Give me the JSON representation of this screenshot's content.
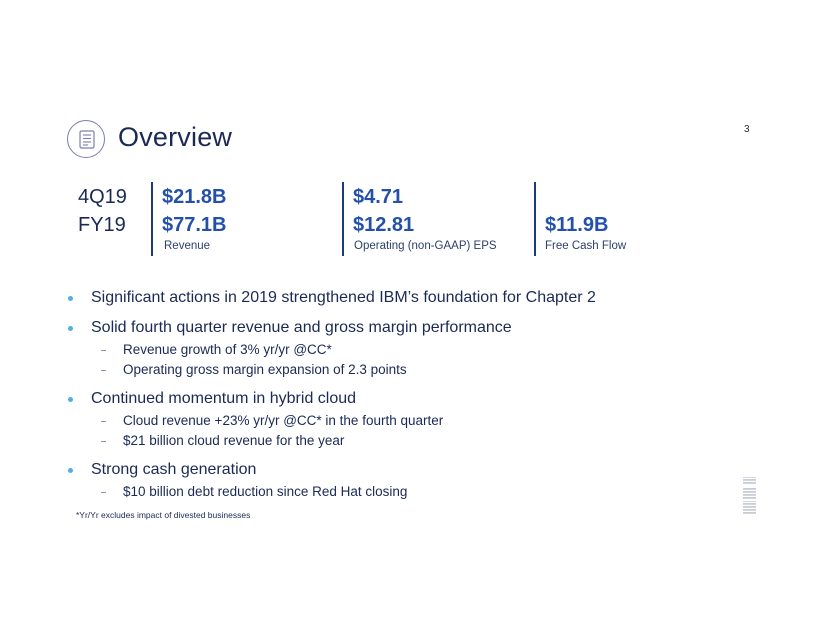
{
  "header": {
    "title": "Overview",
    "page_number": "3",
    "icon": "document-list-icon"
  },
  "metrics": {
    "periods": [
      "4Q19",
      "FY19"
    ],
    "revenue": {
      "q": "$21.8B",
      "fy": "$77.1B",
      "label": "Revenue"
    },
    "eps": {
      "q": "$4.71",
      "fy": "$12.81",
      "label": "Operating (non-GAAP) EPS"
    },
    "fcf": {
      "fy": "$11.9B",
      "label": "Free Cash Flow"
    }
  },
  "bullets": [
    {
      "text": "Significant actions in 2019 strengthened IBM’s foundation for Chapter 2",
      "subs": []
    },
    {
      "text": "Solid fourth quarter revenue and gross margin performance",
      "subs": [
        "Revenue growth of 3% yr/yr @CC*",
        "Operating gross margin expansion of 2.3 points"
      ]
    },
    {
      "text": "Continued momentum in hybrid cloud",
      "subs": [
        "Cloud revenue +23% yr/yr @CC* in the fourth quarter",
        "$21 billion cloud revenue for the year"
      ]
    },
    {
      "text": "Strong cash generation",
      "subs": [
        "$10 billion debt reduction since Red Hat closing"
      ]
    }
  ],
  "footnote": "*Yr/Yr excludes impact of divested businesses",
  "logo": {
    "text": "IBM",
    "icon": "ibm-logo",
    "color": "#c9ccd6"
  },
  "colors": {
    "accent": "#2350a8",
    "navy": "#1b2a55",
    "bullet": "#55aee0"
  }
}
